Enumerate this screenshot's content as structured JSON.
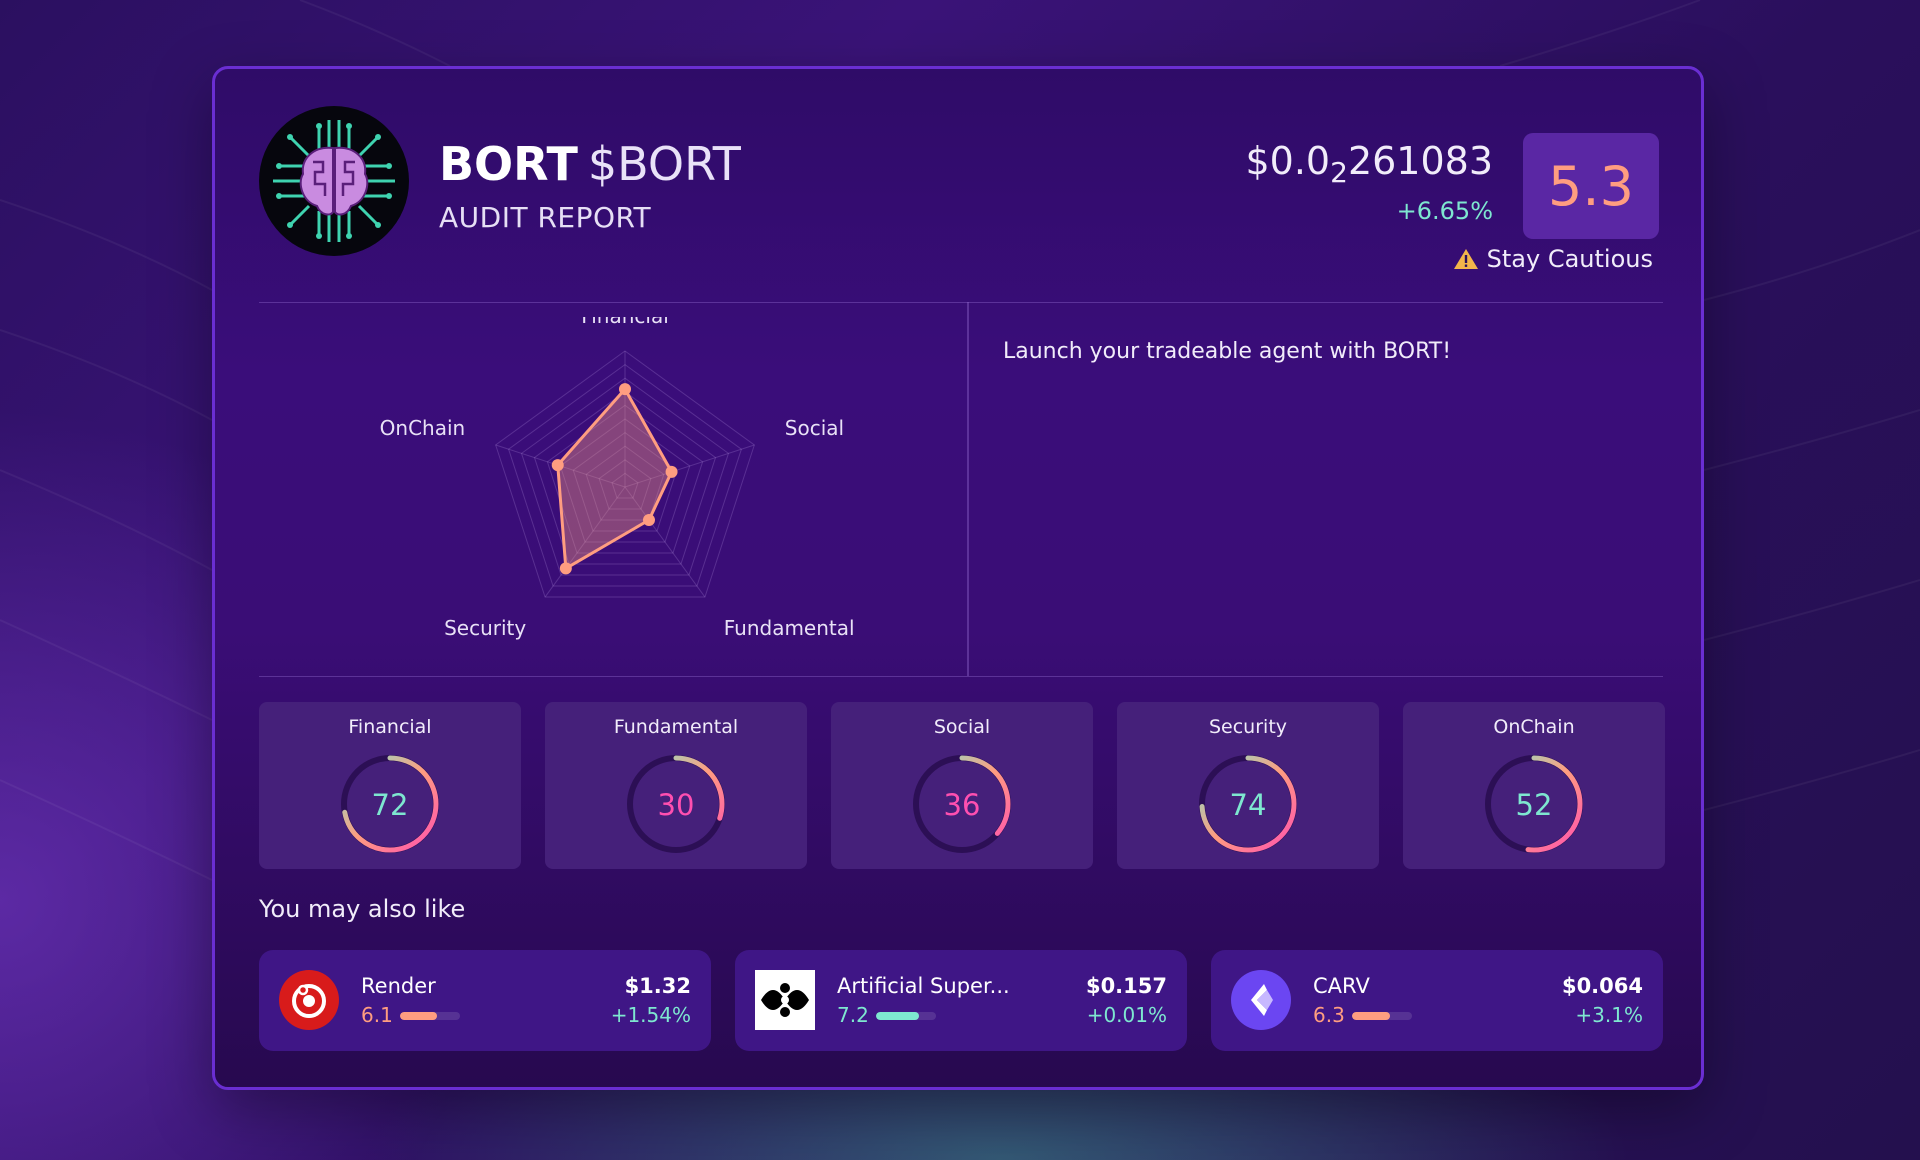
{
  "token": {
    "name": "BORT",
    "ticker": "$BORT",
    "subtitle": "AUDIT REPORT",
    "price_prefix": "$0.0",
    "price_zeros": "2",
    "price_digits": "261083",
    "change": "+6.65%",
    "score": "5.3",
    "caution": "Stay Cautious",
    "description": "Launch your tradeable agent with BORT!"
  },
  "radar": {
    "axes": [
      "Financial",
      "Social",
      "Fundamental",
      "Security",
      "OnChain"
    ],
    "values": [
      72,
      36,
      30,
      74,
      52
    ],
    "max": 100
  },
  "metrics": [
    {
      "label": "Financial",
      "value": 72
    },
    {
      "label": "Fundamental",
      "value": 30
    },
    {
      "label": "Social",
      "value": 36
    },
    {
      "label": "Security",
      "value": 74
    },
    {
      "label": "OnChain",
      "value": 52
    }
  ],
  "recommend": {
    "title": "You may also like",
    "items": [
      {
        "name": "Render",
        "score": "6.1",
        "score_fraction": 0.61,
        "price": "$1.32",
        "change": "+1.54%",
        "color": "#ff9d80",
        "icon": "render-icon"
      },
      {
        "name": "Artificial Super...",
        "score": "7.2",
        "score_fraction": 0.72,
        "price": "$0.157",
        "change": "+0.01%",
        "color": "#7ee7d0",
        "icon": "asi-icon"
      },
      {
        "name": "CARV",
        "score": "6.3",
        "score_fraction": 0.63,
        "price": "$0.064",
        "change": "+3.1%",
        "color": "#ff9d80",
        "icon": "carv-icon"
      }
    ]
  },
  "colors": {
    "accent_salmon": "#ff9d80",
    "accent_teal": "#7ee7d0",
    "accent_pink": "#ff4fb0"
  }
}
